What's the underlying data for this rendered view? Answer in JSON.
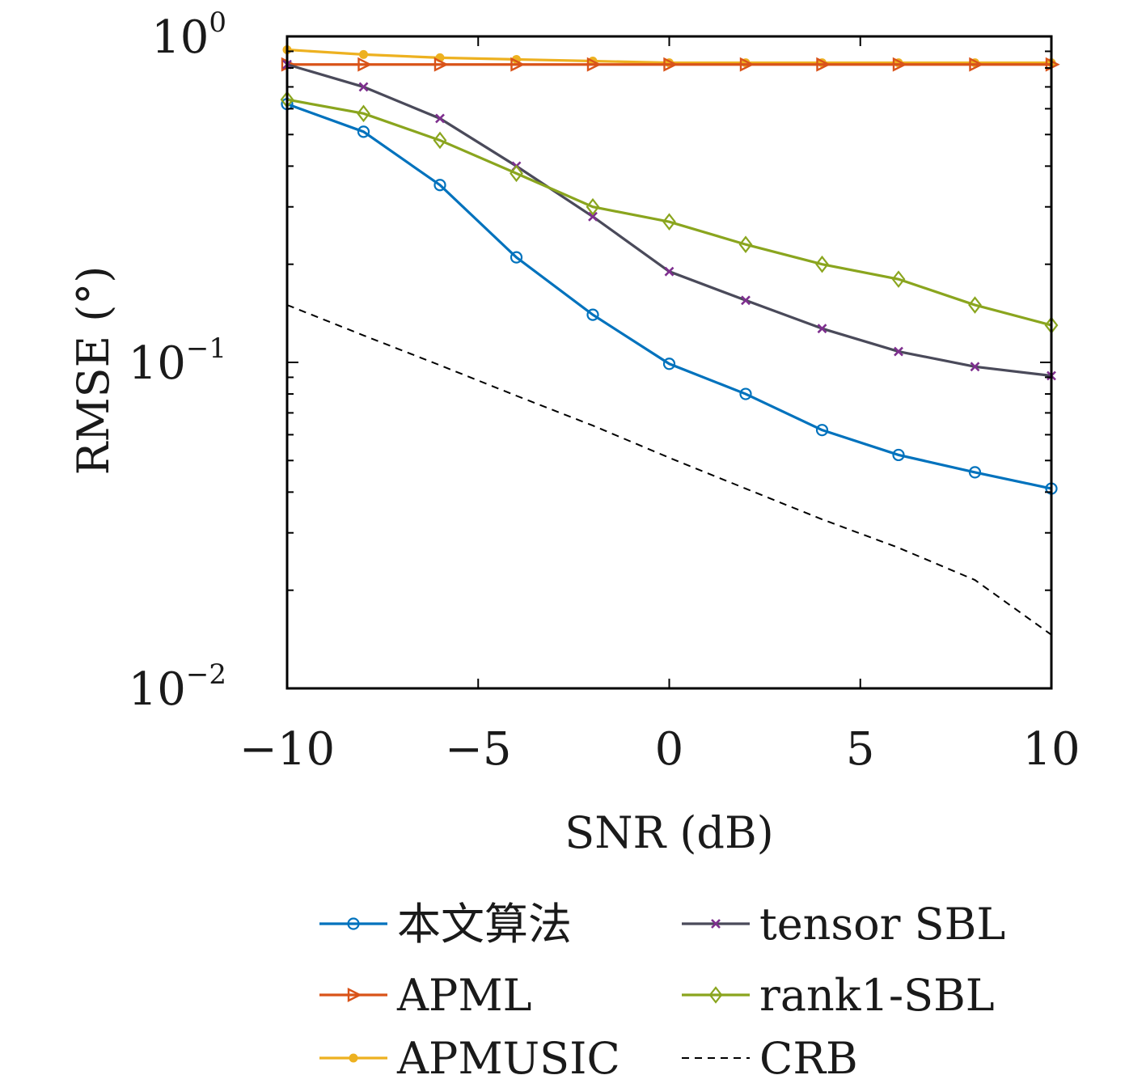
{
  "chart_data": {
    "type": "line",
    "xlabel": "SNR (dB)",
    "ylabel": "RMSE (°)",
    "xlim": [
      -10,
      10
    ],
    "ylim": [
      0.01,
      1
    ],
    "yscale": "log",
    "grid": false,
    "legend_position": "bottom",
    "x_ticks": [
      "−10",
      "−5",
      "0",
      "5",
      "10"
    ],
    "y_ticks": [
      {
        "base": "10",
        "exp": "0",
        "value": 1
      },
      {
        "base": "10",
        "exp": "−1",
        "value": 0.1
      },
      {
        "base": "10",
        "exp": "−2",
        "value": 0.01
      }
    ],
    "x": [
      -10,
      -8,
      -6,
      -4,
      -2,
      0,
      2,
      4,
      6,
      8,
      10
    ],
    "series": [
      {
        "name": "本文算法",
        "color": "#0072BD",
        "marker": "circle",
        "values": [
          0.62,
          0.51,
          0.35,
          0.21,
          0.14,
          0.099,
          0.08,
          0.062,
          0.052,
          0.046,
          0.041
        ]
      },
      {
        "name": "tensor SBL",
        "color": "#4a4a5a",
        "marker": "x",
        "marker_color": "#7E2F8E",
        "values": [
          0.82,
          0.7,
          0.56,
          0.4,
          0.28,
          0.19,
          0.155,
          0.127,
          0.108,
          0.097,
          0.091
        ]
      },
      {
        "name": "APML",
        "color": "#D95319",
        "marker": "triangle-right",
        "values": [
          0.82,
          0.82,
          0.82,
          0.82,
          0.82,
          0.82,
          0.82,
          0.82,
          0.82,
          0.82,
          0.82
        ]
      },
      {
        "name": "rank1-SBL",
        "color": "#8aa51e",
        "marker": "diamond",
        "values": [
          0.64,
          0.58,
          0.48,
          0.38,
          0.3,
          0.27,
          0.23,
          0.2,
          0.18,
          0.15,
          0.13
        ]
      },
      {
        "name": "APMUSIC",
        "color": "#EDB120",
        "marker": "star",
        "values": [
          0.91,
          0.88,
          0.86,
          0.85,
          0.84,
          0.83,
          0.83,
          0.83,
          0.83,
          0.83,
          0.83
        ]
      },
      {
        "name": "CRB",
        "color": "#000000",
        "marker": "none",
        "dashed": true,
        "values": [
          0.15,
          0.121,
          0.098,
          0.079,
          0.064,
          0.051,
          0.041,
          0.033,
          0.027,
          0.0215,
          0.0146
        ]
      }
    ]
  }
}
